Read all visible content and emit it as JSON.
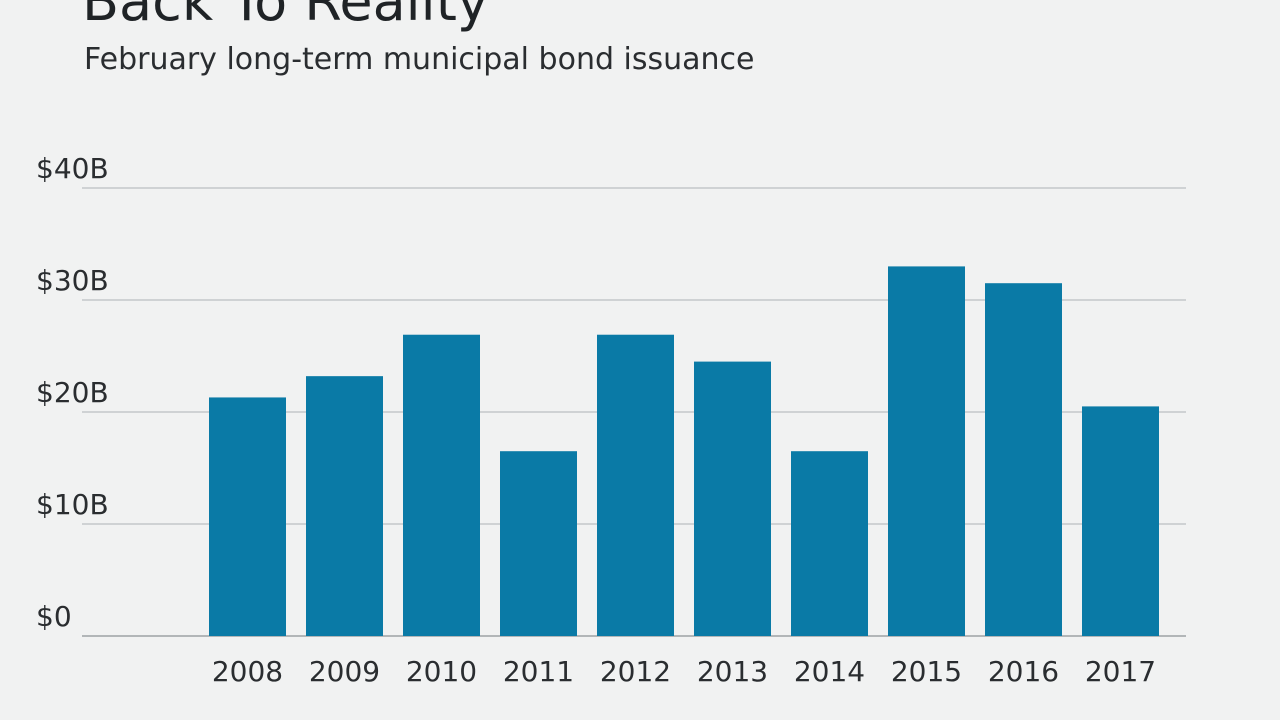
{
  "chart_data": {
    "type": "bar",
    "title": "Back To Reality",
    "subtitle": "February long-term municipal bond issuance",
    "xlabel": "",
    "ylabel": "",
    "categories": [
      "2008",
      "2009",
      "2010",
      "2011",
      "2012",
      "2013",
      "2014",
      "2015",
      "2016",
      "2017"
    ],
    "values": [
      21.3,
      23.2,
      26.9,
      16.5,
      26.9,
      24.5,
      16.5,
      33.0,
      31.5,
      20.5
    ],
    "ylim": [
      0,
      40
    ],
    "yticks": [
      0,
      10,
      20,
      30,
      40
    ],
    "ytick_labels": [
      "$0",
      "$10B",
      "$20B",
      "$30B",
      "$40B"
    ],
    "grid": true,
    "bar_color": "#0a7aa6"
  }
}
